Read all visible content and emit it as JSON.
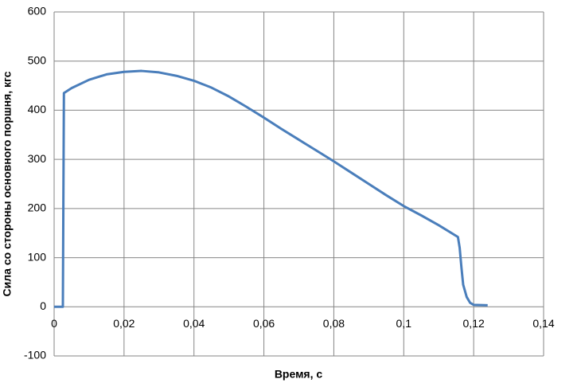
{
  "chart_data": {
    "type": "line",
    "x_label": "Время, с",
    "y_label": "Сила со стороны основного поршня, кгс",
    "x": [
      0,
      0.0025,
      0.0028,
      0.005,
      0.01,
      0.015,
      0.02,
      0.025,
      0.03,
      0.035,
      0.04,
      0.045,
      0.05,
      0.055,
      0.06,
      0.065,
      0.07,
      0.075,
      0.08,
      0.085,
      0.09,
      0.095,
      0.1,
      0.105,
      0.11,
      0.1155,
      0.116,
      0.1165,
      0.117,
      0.118,
      0.119,
      0.12,
      0.124
    ],
    "series": [
      {
        "color": "#4a7ebb",
        "values": [
          0,
          0,
          435,
          445,
          462,
          473,
          478,
          480,
          477,
          470,
          460,
          446,
          428,
          407,
          385,
          362,
          340,
          318,
          296,
          273,
          250,
          227,
          205,
          186,
          166,
          142,
          120,
          80,
          45,
          20,
          8,
          4,
          3
        ]
      }
    ],
    "xlim": [
      0,
      0.14
    ],
    "xticks": [
      0,
      {
        "value": 0.02,
        "label": "0,02"
      },
      {
        "value": 0.04,
        "label": "0,04"
      },
      {
        "value": 0.06,
        "label": "0,06"
      },
      {
        "value": 0.08,
        "label": "0,08"
      },
      {
        "value": 0.1,
        "label": "0,1"
      },
      {
        "value": 0.12,
        "label": "0,12"
      },
      {
        "value": 0.14,
        "label": "0,14"
      }
    ],
    "ylim": [
      -100,
      600
    ],
    "yticks": [
      -100,
      0,
      100,
      200,
      300,
      400,
      500,
      600
    ],
    "grid": true
  }
}
